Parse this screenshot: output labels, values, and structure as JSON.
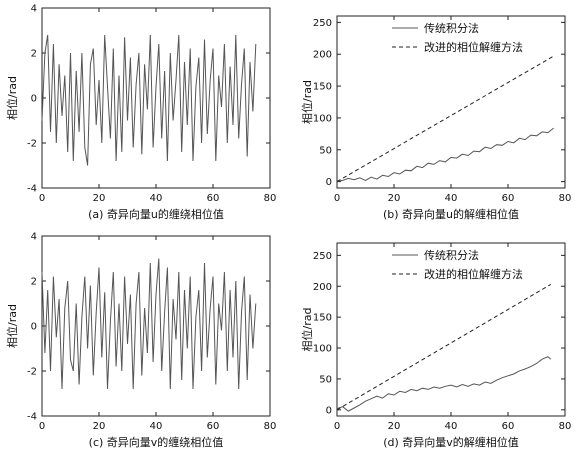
{
  "chart_data": [
    {
      "id": "a",
      "type": "line",
      "caption": "(a) 奇异向量u的缠绕相位值",
      "ylabel": "相位/rad",
      "xlabel": "",
      "xlim": [
        0,
        80
      ],
      "ylim": [
        -4,
        4
      ],
      "xticks": [
        0,
        20,
        40,
        60,
        80
      ],
      "yticks": [
        -4,
        -2,
        0,
        2,
        4
      ],
      "legend": null,
      "series": [
        {
          "name": "",
          "style": "solid",
          "color": "#555555",
          "x": [
            0,
            1,
            2,
            3,
            4,
            5,
            6,
            7,
            8,
            9,
            10,
            11,
            12,
            13,
            14,
            15,
            16,
            17,
            18,
            19,
            20,
            21,
            22,
            23,
            24,
            25,
            26,
            27,
            28,
            29,
            30,
            31,
            32,
            33,
            34,
            35,
            36,
            37,
            38,
            39,
            40,
            41,
            42,
            43,
            44,
            45,
            46,
            47,
            48,
            49,
            50,
            51,
            52,
            53,
            54,
            55,
            56,
            57,
            58,
            59,
            60,
            61,
            62,
            63,
            64,
            65,
            66,
            67,
            68,
            69,
            70,
            71,
            72,
            73,
            74,
            75
          ],
          "y": [
            -1.0,
            2.0,
            2.8,
            -1.5,
            2.4,
            -2.0,
            1.5,
            -0.8,
            1.0,
            -2.4,
            2.0,
            -2.8,
            1.2,
            -1.5,
            2.0,
            -2.2,
            -3.0,
            1.5,
            2.2,
            -1.2,
            0.8,
            -2.0,
            2.8,
            0.5,
            -1.8,
            2.2,
            -2.8,
            1.0,
            -2.4,
            2.7,
            -1.0,
            1.8,
            -2.2,
            0.6,
            2.0,
            -2.5,
            1.5,
            -0.5,
            2.8,
            -2.2,
            0.5,
            2.4,
            -1.8,
            1.2,
            -2.8,
            2.0,
            -1.0,
            0.8,
            2.8,
            -2.4,
            1.6,
            -1.2,
            2.2,
            -2.8,
            0.5,
            1.8,
            -2.0,
            2.6,
            -1.6,
            0.8,
            2.2,
            -2.8,
            1.0,
            -0.4,
            2.4,
            -2.0,
            1.4,
            -1.2,
            2.8,
            -1.8,
            0.6,
            2.2,
            -2.6,
            1.6,
            -0.6,
            2.4
          ]
        }
      ]
    },
    {
      "id": "b",
      "type": "line",
      "caption": "(b) 奇异向量u的解缠相位值",
      "ylabel": "相位/rad",
      "xlabel": "",
      "xlim": [
        0,
        80
      ],
      "ylim": [
        -10,
        260
      ],
      "xticks": [
        0,
        20,
        40,
        60,
        80
      ],
      "yticks": [
        0,
        50,
        100,
        150,
        200,
        250
      ],
      "legend": "top-left",
      "series": [
        {
          "name": "传统积分法",
          "style": "solid",
          "color": "#555555",
          "x": [
            0,
            2,
            4,
            6,
            8,
            10,
            12,
            14,
            16,
            18,
            20,
            22,
            24,
            26,
            28,
            30,
            32,
            34,
            36,
            38,
            40,
            42,
            44,
            46,
            48,
            50,
            52,
            54,
            56,
            58,
            60,
            62,
            64,
            66,
            68,
            70,
            72,
            74,
            76
          ],
          "y": [
            0,
            2,
            5,
            3,
            6,
            2,
            7,
            4,
            10,
            8,
            14,
            12,
            18,
            17,
            24,
            22,
            29,
            27,
            33,
            31,
            38,
            37,
            43,
            41,
            48,
            47,
            54,
            52,
            58,
            57,
            63,
            61,
            68,
            66,
            73,
            72,
            78,
            77,
            84
          ]
        },
        {
          "name": "改进的相位解缠方法",
          "style": "dashed",
          "color": "#222222",
          "x": [
            0,
            76
          ],
          "y": [
            0,
            197
          ]
        }
      ]
    },
    {
      "id": "c",
      "type": "line",
      "caption": "(c) 奇异向量v的缠绕相位值",
      "ylabel": "相位/rad",
      "xlabel": "",
      "xlim": [
        0,
        80
      ],
      "ylim": [
        -4,
        4
      ],
      "xticks": [
        0,
        20,
        40,
        60,
        80
      ],
      "yticks": [
        -4,
        -2,
        0,
        2,
        4
      ],
      "legend": null,
      "series": [
        {
          "name": "",
          "style": "solid",
          "color": "#555555",
          "x": [
            0,
            1,
            2,
            3,
            4,
            5,
            6,
            7,
            8,
            9,
            10,
            11,
            12,
            13,
            14,
            15,
            16,
            17,
            18,
            19,
            20,
            21,
            22,
            23,
            24,
            25,
            26,
            27,
            28,
            29,
            30,
            31,
            32,
            33,
            34,
            35,
            36,
            37,
            38,
            39,
            40,
            41,
            42,
            43,
            44,
            45,
            46,
            47,
            48,
            49,
            50,
            51,
            52,
            53,
            54,
            55,
            56,
            57,
            58,
            59,
            60,
            61,
            62,
            63,
            64,
            65,
            66,
            67,
            68,
            69,
            70,
            71,
            72,
            73,
            74,
            75
          ],
          "y": [
            2.4,
            -1.2,
            1.6,
            -2.0,
            2.2,
            -0.5,
            1.2,
            -2.8,
            0.8,
            2.0,
            -1.5,
            -2.0,
            1.0,
            -2.6,
            0.4,
            2.2,
            -1.0,
            1.8,
            -2.2,
            0.6,
            2.6,
            -1.4,
            1.5,
            -2.8,
            0.2,
            2.4,
            -1.8,
            1.0,
            -2.0,
            2.2,
            -0.8,
            1.4,
            -2.8,
            1.0,
            2.4,
            -2.2,
            0.8,
            -1.2,
            2.8,
            -1.6,
            1.4,
            3.0,
            -2.0,
            0.6,
            2.6,
            -2.8,
            1.2,
            -0.6,
            2.4,
            -2.4,
            1.6,
            -1.0,
            2.2,
            -2.8,
            0.4,
            1.6,
            -2.0,
            2.8,
            -1.4,
            0.8,
            2.2,
            -2.6,
            1.0,
            -0.2,
            2.4,
            -2.0,
            1.6,
            -1.4,
            2.0,
            -2.8,
            0.6,
            2.2,
            -2.4,
            1.4,
            -1.0,
            1.0
          ]
        }
      ]
    },
    {
      "id": "d",
      "type": "line",
      "caption": "(d) 奇异向量v的解缠相位值",
      "ylabel": "相位/rad",
      "xlabel": "",
      "xlim": [
        0,
        80
      ],
      "ylim": [
        -10,
        270
      ],
      "xticks": [
        0,
        20,
        40,
        60,
        80
      ],
      "yticks": [
        0,
        50,
        100,
        150,
        200,
        250
      ],
      "legend": "top-left",
      "series": [
        {
          "name": "传统积分法",
          "style": "solid",
          "color": "#555555",
          "x": [
            0,
            2,
            4,
            6,
            8,
            10,
            12,
            14,
            16,
            18,
            20,
            22,
            24,
            26,
            28,
            30,
            32,
            34,
            36,
            38,
            40,
            42,
            44,
            46,
            48,
            50,
            52,
            54,
            56,
            58,
            60,
            62,
            64,
            66,
            68,
            70,
            72,
            74,
            75
          ],
          "y": [
            2,
            5,
            -2,
            3,
            8,
            14,
            18,
            22,
            19,
            26,
            24,
            30,
            28,
            33,
            31,
            35,
            33,
            37,
            35,
            38,
            40,
            37,
            41,
            38,
            42,
            40,
            45,
            43,
            48,
            52,
            55,
            58,
            63,
            66,
            70,
            75,
            82,
            86,
            82
          ]
        },
        {
          "name": "改进的相位解缠方法",
          "style": "dashed",
          "color": "#222222",
          "x": [
            0,
            75
          ],
          "y": [
            0,
            203
          ]
        }
      ]
    }
  ]
}
